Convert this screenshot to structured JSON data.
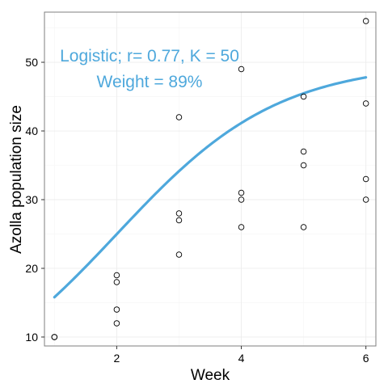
{
  "chart_data": {
    "type": "scatter",
    "title": "",
    "xlabel": "Week",
    "ylabel": "Azolla population size",
    "xlim": [
      0.84,
      6.16
    ],
    "ylim": [
      8.7,
      57.3
    ],
    "x_ticks": [
      2,
      4,
      6
    ],
    "x_tick_labels": [
      "2",
      "4",
      "6"
    ],
    "y_ticks": [
      10,
      20,
      30,
      40,
      50
    ],
    "y_tick_labels": [
      "10",
      "20",
      "30",
      "40",
      "50"
    ],
    "grid": true,
    "legend": "none",
    "points": {
      "x": [
        1,
        1,
        2,
        2,
        2,
        2,
        3,
        3,
        3,
        3,
        4,
        4,
        4,
        4,
        5,
        5,
        5,
        5,
        6,
        6,
        6,
        6
      ],
      "y": [
        10,
        10,
        19,
        18,
        14,
        12,
        42,
        28,
        27,
        22,
        49,
        31,
        30,
        26,
        45,
        37,
        35,
        26,
        56,
        44,
        33,
        30
      ]
    },
    "fit_curve": {
      "model": "logistic",
      "r": 0.77,
      "K": 50,
      "N0": 15.8,
      "x_start": 1,
      "x_end": 6
    },
    "annotations": [
      {
        "text": "Logistic; r= 0.77, K = 50"
      },
      {
        "text": "Weight = 89%"
      }
    ],
    "colors": {
      "curve": "#4ea8dc",
      "annotation": "#4ea8dc",
      "points": "#000000",
      "grid": "#ececec",
      "panel_border": "#7f7f7f"
    }
  }
}
